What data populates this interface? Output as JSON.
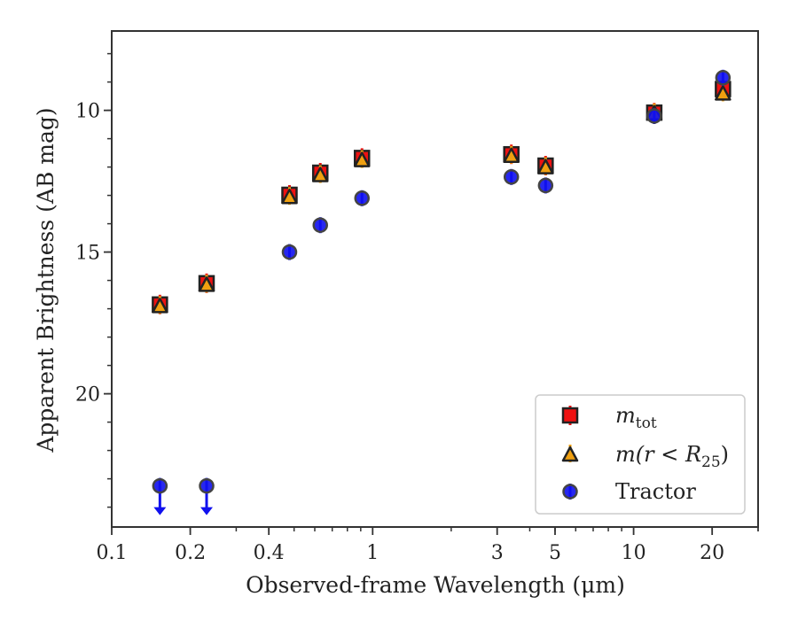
{
  "chart_data": {
    "type": "scatter",
    "xlabel": "Observed-frame Wavelength (μm)",
    "ylabel": "Apparent Brightness (AB mag)",
    "xscale": "log",
    "xlim": [
      0.1,
      30
    ],
    "ylim": [
      24.7,
      7.2
    ],
    "y_inverted": true,
    "grid": false,
    "legend_position": "lower-right",
    "x_ticks": [
      0.1,
      0.2,
      0.4,
      1,
      3,
      5,
      10,
      20
    ],
    "x_tick_labels": [
      "0.1",
      "0.2",
      "0.4",
      "1",
      "3",
      "5",
      "10",
      "20"
    ],
    "y_ticks": [
      10,
      15,
      20
    ],
    "y_tick_labels": [
      "10",
      "15",
      "20"
    ],
    "series": [
      {
        "name": "m_tot",
        "marker": "square",
        "color": "#ee1111",
        "x": [
          0.153,
          0.231,
          0.48,
          0.63,
          0.91,
          3.4,
          4.6,
          12,
          22
        ],
        "y": [
          16.85,
          16.1,
          12.98,
          12.2,
          11.68,
          11.55,
          11.95,
          10.08,
          9.25
        ]
      },
      {
        "name": "m(r<R25)",
        "marker": "triangle",
        "color": "#f0a010",
        "x": [
          0.153,
          0.231,
          0.48,
          0.63,
          0.91,
          3.4,
          4.6,
          12,
          22
        ],
        "y": [
          16.9,
          16.15,
          13.05,
          12.28,
          11.75,
          11.6,
          12.0,
          10.1,
          9.4
        ]
      },
      {
        "name": "Tractor",
        "marker": "circle",
        "color": "#1010ee",
        "upper_limit_x": [
          0.153,
          0.231
        ],
        "x": [
          0.153,
          0.231,
          0.48,
          0.63,
          0.91,
          3.4,
          4.6,
          12,
          22
        ],
        "y": [
          23.25,
          23.25,
          15.0,
          14.05,
          13.1,
          12.35,
          12.65,
          10.2,
          8.85
        ]
      }
    ],
    "legend": {
      "entries": [
        {
          "series": 0,
          "main": "m",
          "sub": "tot",
          "tail": ""
        },
        {
          "series": 1,
          "main": "m(r < R",
          "sub": "25",
          "tail": ")"
        },
        {
          "series": 2,
          "main": "Tractor",
          "sub": "",
          "tail": ""
        }
      ]
    }
  }
}
